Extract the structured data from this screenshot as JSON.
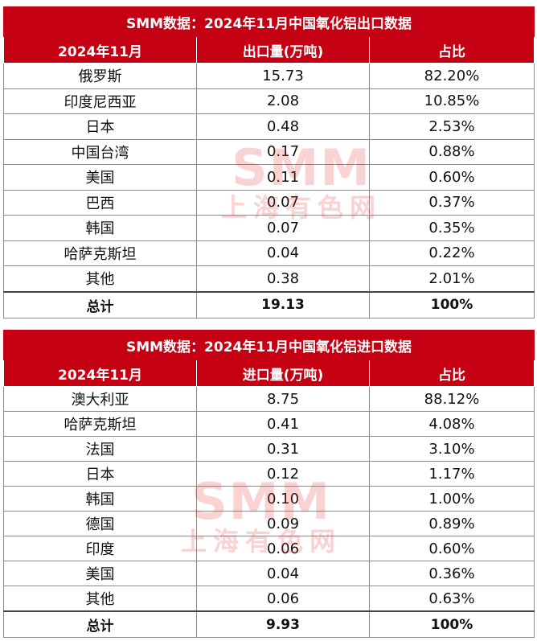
{
  "export": {
    "title": "SMM数据：2024年11月中国氧化铝出口数据",
    "headers": [
      "2024年11月",
      "出口量(万吨)",
      "占比"
    ],
    "rows": [
      [
        "俄罗斯",
        "15.73",
        "82.20%"
      ],
      [
        "印度尼西亚",
        "2.08",
        "10.85%"
      ],
      [
        "日本",
        "0.48",
        "2.53%"
      ],
      [
        "中国台湾",
        "0.17",
        "0.88%"
      ],
      [
        "美国",
        "0.11",
        "0.60%"
      ],
      [
        "巴西",
        "0.07",
        "0.37%"
      ],
      [
        "韩国",
        "0.07",
        "0.35%"
      ],
      [
        "哈萨克斯坦",
        "0.04",
        "0.22%"
      ],
      [
        "其他",
        "0.38",
        "2.01%"
      ]
    ],
    "total": [
      "总计",
      "19.13",
      "100%"
    ]
  },
  "import": {
    "title": "SMM数据：2024年11月中国氧化铝进口数据",
    "headers": [
      "2024年11月",
      "进口量(万吨)",
      "占比"
    ],
    "rows": [
      [
        "澳大利亚",
        "8.75",
        "88.12%"
      ],
      [
        "哈萨克斯坦",
        "0.41",
        "4.08%"
      ],
      [
        "法国",
        "0.31",
        "3.10%"
      ],
      [
        "日本",
        "0.12",
        "1.17%"
      ],
      [
        "韩国",
        "0.10",
        "1.00%"
      ],
      [
        "德国",
        "0.09",
        "0.89%"
      ],
      [
        "印度",
        "0.06",
        "0.60%"
      ],
      [
        "美国",
        "0.04",
        "0.36%"
      ],
      [
        "其他",
        "0.06",
        "0.63%"
      ]
    ],
    "total": [
      "总计",
      "9.93",
      "100%"
    ]
  },
  "watermark": {
    "en": "SMM",
    "cn": "上海有色网"
  }
}
